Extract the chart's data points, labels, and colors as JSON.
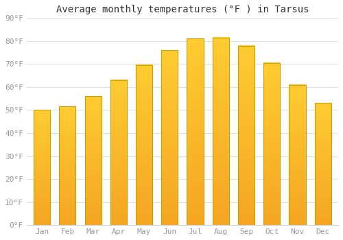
{
  "title": "Average monthly temperatures (°F ) in Tarsus",
  "months": [
    "Jan",
    "Feb",
    "Mar",
    "Apr",
    "May",
    "Jun",
    "Jul",
    "Aug",
    "Sep",
    "Oct",
    "Nov",
    "Dec"
  ],
  "values": [
    50,
    51.5,
    56,
    63,
    69.5,
    76,
    81,
    81.5,
    78,
    70.5,
    61,
    53
  ],
  "ylim": [
    0,
    90
  ],
  "yticks": [
    0,
    10,
    20,
    30,
    40,
    50,
    60,
    70,
    80,
    90
  ],
  "ytick_labels": [
    "0°F",
    "10°F",
    "20°F",
    "30°F",
    "40°F",
    "50°F",
    "60°F",
    "70°F",
    "80°F",
    "90°F"
  ],
  "bar_color_top": "#FFCC33",
  "bar_color_bottom": "#F5A623",
  "bar_border_color": "#C8A000",
  "background_color": "#FFFFFF",
  "plot_bg_color": "#FFFFFF",
  "grid_color": "#DDDDDD",
  "title_fontsize": 10,
  "tick_fontsize": 8,
  "tick_color": "#999999",
  "title_color": "#333333",
  "bar_width": 0.65
}
